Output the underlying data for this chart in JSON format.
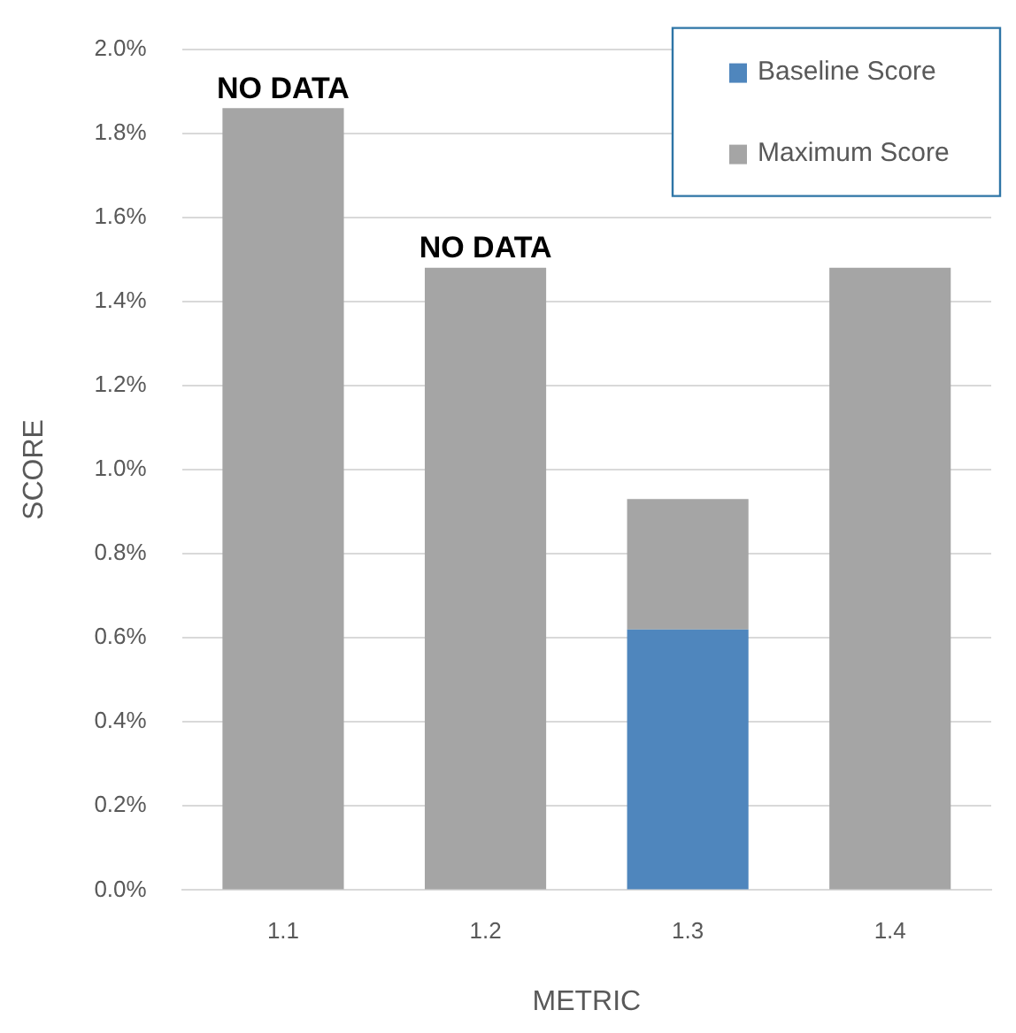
{
  "chart_data": {
    "type": "bar",
    "xlabel": "METRIC",
    "ylabel": "SCORE",
    "categories": [
      "1.1",
      "1.2",
      "1.3",
      "1.4"
    ],
    "stacked": true,
    "series": [
      {
        "name": "Baseline Score",
        "color": "#4f86bd",
        "values": [
          null,
          null,
          0.62,
          null
        ]
      },
      {
        "name": "Maximum Score",
        "color": "#a5a5a5",
        "values": [
          1.86,
          1.48,
          0.31,
          1.48
        ]
      }
    ],
    "ylim": [
      0,
      2
    ],
    "yticks": [
      {
        "value": 0,
        "label": "0.0%"
      },
      {
        "value": 0.2,
        "label": "0.2%"
      },
      {
        "value": 0.4,
        "label": "0.4%"
      },
      {
        "value": 0.6,
        "label": "0.6%"
      },
      {
        "value": 0.8,
        "label": "0.8%"
      },
      {
        "value": 1,
        "label": "1.0%"
      },
      {
        "value": 1.2,
        "label": "1.2%"
      },
      {
        "value": 1.4,
        "label": "1.4%"
      },
      {
        "value": 1.6,
        "label": "1.6%"
      },
      {
        "value": 1.8,
        "label": "1.8%"
      },
      {
        "value": 2,
        "label": "2.0%"
      }
    ],
    "grid": "y",
    "legend": "top right",
    "annotations": [
      {
        "text": "NO DATA",
        "x": "1.1",
        "y": 1.86
      },
      {
        "text": "NO DATA",
        "x": "1.2",
        "y": 1.48
      }
    ]
  }
}
